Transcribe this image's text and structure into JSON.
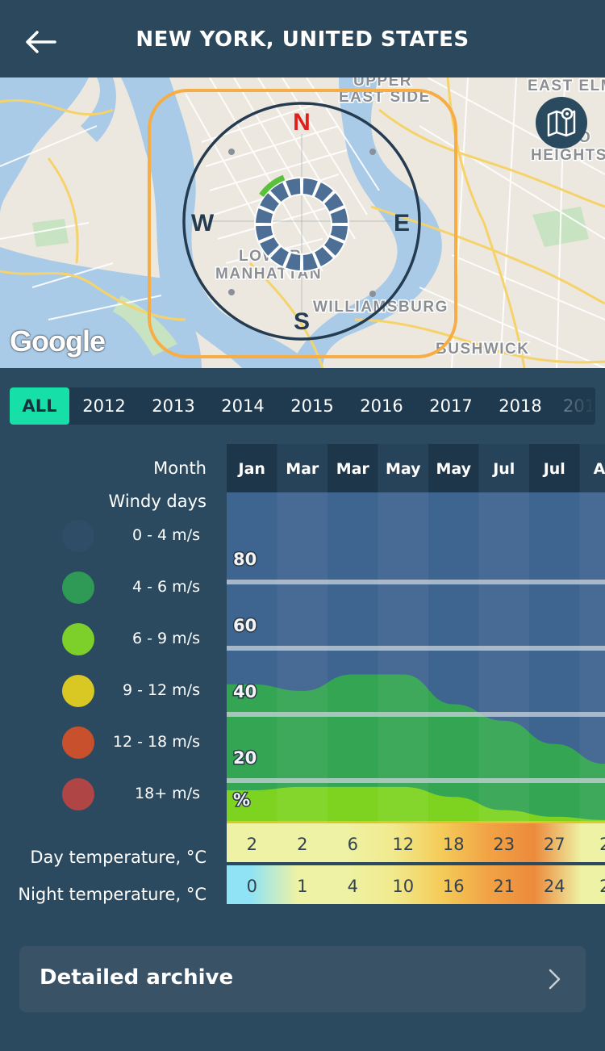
{
  "header": {
    "title": "NEW YORK, UNITED STATES"
  },
  "map": {
    "compass": {
      "n": "N",
      "s": "S",
      "e": "E",
      "w": "W"
    },
    "labels": [
      "EAST SIDE",
      "EAST ELM",
      "HEIGHTS",
      "LOWER MANHATTAN",
      "WILLIAMSBURG",
      "BUSHWICK",
      "UPPER"
    ],
    "google_logo": "Google"
  },
  "years": {
    "tabs": [
      "ALL",
      "2012",
      "2013",
      "2014",
      "2015",
      "2016",
      "2017",
      "2018",
      "201"
    ],
    "active": "ALL"
  },
  "legend": {
    "month_label": "Month",
    "windy_label": "Windy days",
    "ranges": [
      {
        "label": "0 - 4 m/s",
        "color": "#2f4d66"
      },
      {
        "label": "4 - 6 m/s",
        "color": "#2f9a55"
      },
      {
        "label": "6 - 9 m/s",
        "color": "#7dcf2a"
      },
      {
        "label": "9 - 12 m/s",
        "color": "#d9c824"
      },
      {
        "label": "12 - 18 m/s",
        "color": "#c9502c"
      },
      {
        "label": "18+ m/s",
        "color": "#b04545"
      }
    ],
    "day_temp_label": "Day temperature, °C",
    "night_temp_label": "Night temperature, °C"
  },
  "chart_data": {
    "type": "area",
    "months": [
      "Jan",
      "Mar",
      "Mar",
      "May",
      "May",
      "Jul",
      "Jul",
      "Au"
    ],
    "yticks": [
      "80",
      "60",
      "40",
      "20",
      "%"
    ],
    "ylim": [
      0,
      100
    ],
    "series": [
      {
        "name": "0 - 4 m/s",
        "color": "#3e6490",
        "values": [
          100,
          100,
          100,
          100,
          100,
          100,
          100,
          100
        ]
      },
      {
        "name": "4 - 6 m/s",
        "color": "#34a552",
        "values": [
          42,
          40,
          45,
          45,
          36,
          31,
          24,
          18
        ]
      },
      {
        "name": "6 - 9 m/s",
        "color": "#7ed321",
        "values": [
          10,
          11,
          11,
          11,
          8,
          4,
          2,
          1
        ]
      }
    ],
    "day_temp": [
      "2",
      "2",
      "6",
      "12",
      "18",
      "23",
      "27",
      "2"
    ],
    "night_temp": [
      "0",
      "1",
      "4",
      "10",
      "16",
      "21",
      "24",
      "2"
    ]
  },
  "archive": {
    "label": "Detailed archive"
  }
}
